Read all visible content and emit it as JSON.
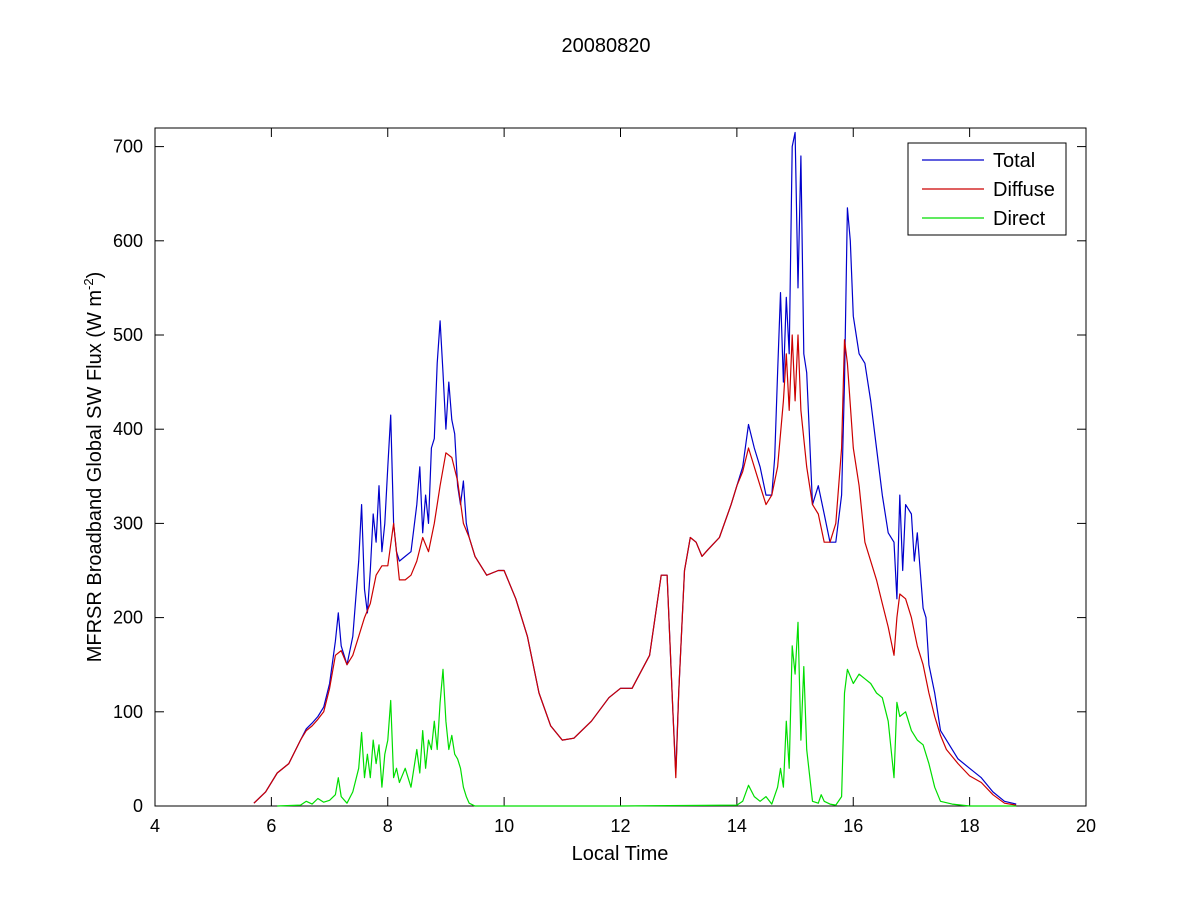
{
  "chart_data": {
    "type": "line",
    "title": "20080820",
    "xlabel": "Local Time",
    "ylabel": "MFRSR Broadband Global SW Flux (W m",
    "ylabel_sup": "-2",
    "ylabel_close": ")",
    "xlim": [
      4,
      20
    ],
    "ylim": [
      0,
      720
    ],
    "xticks": [
      4,
      6,
      8,
      10,
      12,
      14,
      16,
      18,
      20
    ],
    "yticks": [
      0,
      100,
      200,
      300,
      400,
      500,
      600,
      700
    ],
    "grid": false,
    "legend_position": "top-right",
    "colors": {
      "Total": "#0000cc",
      "Diffuse": "#cc0000",
      "Direct": "#00dd00"
    },
    "series": [
      {
        "name": "Total",
        "x": [
          5.7,
          5.9,
          6.1,
          6.3,
          6.5,
          6.6,
          6.7,
          6.8,
          6.9,
          7.0,
          7.1,
          7.15,
          7.2,
          7.3,
          7.4,
          7.5,
          7.55,
          7.6,
          7.65,
          7.7,
          7.75,
          7.8,
          7.85,
          7.9,
          7.95,
          8.0,
          8.05,
          8.1,
          8.15,
          8.2,
          8.3,
          8.4,
          8.5,
          8.55,
          8.6,
          8.65,
          8.7,
          8.75,
          8.8,
          8.85,
          8.9,
          8.95,
          9.0,
          9.05,
          9.1,
          9.15,
          9.2,
          9.25,
          9.3,
          9.35,
          9.4,
          9.5,
          9.7,
          9.9,
          10.0,
          10.2,
          10.4,
          10.6,
          10.8,
          11.0,
          11.2,
          11.5,
          11.8,
          12.0,
          12.2,
          12.5,
          12.7,
          12.8,
          12.9,
          12.95,
          13.0,
          13.1,
          13.2,
          13.3,
          13.4,
          13.5,
          13.7,
          13.9,
          14.0,
          14.1,
          14.2,
          14.3,
          14.4,
          14.5,
          14.6,
          14.65,
          14.7,
          14.75,
          14.8,
          14.85,
          14.9,
          14.95,
          15.0,
          15.05,
          15.1,
          15.15,
          15.2,
          15.3,
          15.4,
          15.5,
          15.6,
          15.7,
          15.8,
          15.85,
          15.9,
          15.95,
          16.0,
          16.05,
          16.1,
          16.2,
          16.3,
          16.4,
          16.5,
          16.6,
          16.7,
          16.75,
          16.8,
          16.85,
          16.9,
          17.0,
          17.05,
          17.1,
          17.15,
          17.2,
          17.25,
          17.3,
          17.4,
          17.5,
          17.6,
          17.8,
          18.0,
          18.2,
          18.4,
          18.6,
          18.8
        ],
        "values": [
          3,
          15,
          35,
          45,
          70,
          82,
          88,
          95,
          105,
          130,
          175,
          205,
          170,
          150,
          180,
          260,
          320,
          230,
          205,
          250,
          310,
          280,
          340,
          270,
          300,
          360,
          415,
          300,
          270,
          260,
          265,
          270,
          320,
          360,
          290,
          330,
          300,
          380,
          390,
          470,
          515,
          460,
          400,
          450,
          410,
          395,
          340,
          320,
          345,
          300,
          285,
          265,
          245,
          250,
          250,
          220,
          180,
          120,
          85,
          70,
          72,
          90,
          115,
          125,
          125,
          160,
          245,
          245,
          100,
          35,
          120,
          250,
          285,
          280,
          265,
          272,
          285,
          320,
          340,
          360,
          405,
          380,
          360,
          330,
          330,
          370,
          460,
          545,
          450,
          540,
          480,
          700,
          715,
          550,
          690,
          480,
          460,
          320,
          340,
          310,
          280,
          280,
          330,
          450,
          635,
          600,
          520,
          500,
          480,
          470,
          430,
          380,
          330,
          290,
          280,
          220,
          330,
          250,
          320,
          310,
          260,
          290,
          250,
          210,
          200,
          150,
          120,
          80,
          70,
          50,
          40,
          30,
          15,
          5,
          2
        ]
      },
      {
        "name": "Diffuse",
        "x": [
          5.7,
          5.9,
          6.1,
          6.3,
          6.5,
          6.6,
          6.7,
          6.8,
          6.9,
          7.0,
          7.1,
          7.2,
          7.3,
          7.4,
          7.5,
          7.6,
          7.7,
          7.8,
          7.9,
          8.0,
          8.1,
          8.2,
          8.3,
          8.4,
          8.5,
          8.6,
          8.7,
          8.8,
          8.9,
          9.0,
          9.1,
          9.2,
          9.3,
          9.4,
          9.5,
          9.7,
          9.9,
          10.0,
          10.2,
          10.4,
          10.6,
          10.8,
          11.0,
          11.2,
          11.5,
          11.8,
          12.0,
          12.2,
          12.5,
          12.7,
          12.8,
          12.9,
          12.95,
          13.0,
          13.1,
          13.2,
          13.3,
          13.4,
          13.5,
          13.7,
          13.9,
          14.0,
          14.1,
          14.2,
          14.3,
          14.4,
          14.5,
          14.6,
          14.7,
          14.8,
          14.85,
          14.9,
          14.95,
          15.0,
          15.05,
          15.1,
          15.2,
          15.3,
          15.4,
          15.5,
          15.6,
          15.7,
          15.8,
          15.85,
          15.9,
          16.0,
          16.1,
          16.2,
          16.3,
          16.4,
          16.5,
          16.6,
          16.7,
          16.75,
          16.8,
          16.9,
          17.0,
          17.1,
          17.2,
          17.3,
          17.4,
          17.5,
          17.6,
          17.8,
          18.0,
          18.2,
          18.4,
          18.6,
          18.8
        ],
        "values": [
          3,
          15,
          35,
          45,
          70,
          80,
          85,
          92,
          100,
          125,
          160,
          165,
          150,
          160,
          180,
          200,
          215,
          245,
          255,
          255,
          300,
          240,
          240,
          245,
          260,
          285,
          270,
          300,
          340,
          375,
          370,
          345,
          300,
          285,
          265,
          245,
          250,
          250,
          220,
          180,
          120,
          85,
          70,
          72,
          90,
          115,
          125,
          125,
          160,
          245,
          245,
          100,
          30,
          120,
          250,
          285,
          280,
          265,
          272,
          285,
          320,
          340,
          355,
          380,
          360,
          340,
          320,
          330,
          360,
          430,
          480,
          420,
          500,
          430,
          500,
          420,
          360,
          320,
          310,
          280,
          280,
          300,
          380,
          495,
          470,
          380,
          340,
          280,
          260,
          240,
          215,
          190,
          160,
          200,
          225,
          220,
          200,
          170,
          150,
          120,
          95,
          75,
          60,
          45,
          32,
          25,
          12,
          3,
          1
        ]
      },
      {
        "name": "Direct",
        "x": [
          6.1,
          6.5,
          6.6,
          6.7,
          6.8,
          6.9,
          7.0,
          7.1,
          7.15,
          7.2,
          7.3,
          7.4,
          7.5,
          7.55,
          7.6,
          7.65,
          7.7,
          7.75,
          7.8,
          7.85,
          7.9,
          7.95,
          8.0,
          8.05,
          8.1,
          8.15,
          8.2,
          8.3,
          8.4,
          8.5,
          8.55,
          8.6,
          8.65,
          8.7,
          8.75,
          8.8,
          8.85,
          8.9,
          8.95,
          9.0,
          9.05,
          9.1,
          9.15,
          9.2,
          9.25,
          9.3,
          9.35,
          9.4,
          9.5,
          10.0,
          12.0,
          14.0,
          14.1,
          14.2,
          14.3,
          14.4,
          14.5,
          14.6,
          14.7,
          14.75,
          14.8,
          14.85,
          14.9,
          14.95,
          15.0,
          15.05,
          15.1,
          15.15,
          15.2,
          15.3,
          15.4,
          15.45,
          15.5,
          15.6,
          15.7,
          15.8,
          15.85,
          15.9,
          16.0,
          16.1,
          16.2,
          16.3,
          16.4,
          16.5,
          16.6,
          16.7,
          16.75,
          16.8,
          16.9,
          17.0,
          17.1,
          17.2,
          17.3,
          17.4,
          17.5,
          17.7,
          18.0,
          18.5,
          18.8
        ],
        "values": [
          0,
          1,
          5,
          2,
          8,
          4,
          6,
          12,
          30,
          10,
          3,
          15,
          40,
          78,
          30,
          55,
          30,
          70,
          45,
          65,
          20,
          55,
          70,
          112,
          30,
          40,
          25,
          40,
          20,
          60,
          35,
          80,
          40,
          70,
          60,
          90,
          60,
          110,
          145,
          90,
          60,
          75,
          55,
          50,
          40,
          20,
          10,
          3,
          0,
          0,
          0,
          1,
          5,
          22,
          10,
          5,
          10,
          2,
          20,
          40,
          20,
          90,
          40,
          170,
          140,
          195,
          70,
          148,
          60,
          5,
          3,
          12,
          5,
          2,
          1,
          10,
          120,
          145,
          130,
          140,
          135,
          130,
          120,
          115,
          90,
          30,
          110,
          95,
          100,
          80,
          70,
          65,
          45,
          20,
          5,
          2,
          0,
          0,
          0
        ]
      }
    ]
  }
}
